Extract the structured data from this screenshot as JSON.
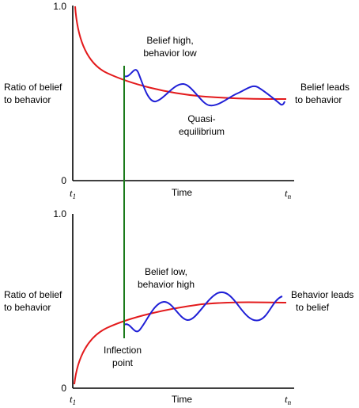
{
  "top_panel": {
    "y_max": "1.0",
    "y_min": "0",
    "y_label_line1": "Ratio of belief",
    "y_label_line2": "to behavior",
    "x_label": "Time",
    "t_start_base": "t",
    "t_start_sub": "1",
    "t_end_base": "t",
    "t_end_sub": "n",
    "note_line1": "Belief high,",
    "note_line2": "behavior low",
    "mid_line1": "Quasi-",
    "mid_line2": "equilibrium",
    "right_line1": "Belief leads",
    "right_line2": "to behavior"
  },
  "bottom_panel": {
    "y_max": "1.0",
    "y_min": "0",
    "y_label_line1": "Ratio of belief",
    "y_label_line2": "to behavior",
    "x_label": "Time",
    "t_start_base": "t",
    "t_start_sub": "1",
    "t_end_base": "t",
    "t_end_sub": "n",
    "note_line1": "Belief low,",
    "note_line2": "behavior high",
    "inflection_line1": "Inflection",
    "inflection_line2": "point",
    "right_line1": "Behavior leads",
    "right_line2": "to belief"
  },
  "colors": {
    "trend_curve": "#e31a1c",
    "oscillation": "#1f1fd6",
    "inflection_line": "#1a7a1a"
  }
}
